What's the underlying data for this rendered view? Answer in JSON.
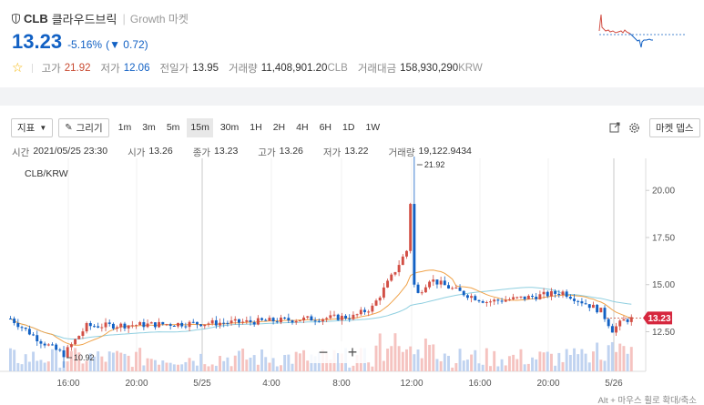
{
  "header": {
    "symbol": "CLB",
    "korean_name": "클라우드브릭",
    "separator": "|",
    "market": "Growth 마켓",
    "price": "13.23",
    "change_pct": "-5.16%",
    "change_abs": "▼ 0.72",
    "stats": [
      {
        "label": "고가",
        "value": "21.92",
        "tone": "red"
      },
      {
        "label": "저가",
        "value": "12.06",
        "tone": "blue"
      },
      {
        "label": "전일가",
        "value": "13.95",
        "tone": "plain"
      },
      {
        "label": "거래량",
        "value": "11,408,901.20",
        "unit": "CLB",
        "tone": "plain"
      },
      {
        "label": "거래대금",
        "value": "158,930,290",
        "unit": "KRW",
        "tone": "plain"
      }
    ]
  },
  "toolbar": {
    "indicator_label": "지표",
    "draw_label": "그리기",
    "timeframes": [
      "1m",
      "3m",
      "5m",
      "15m",
      "30m",
      "1H",
      "2H",
      "4H",
      "6H",
      "1D",
      "1W"
    ],
    "active_timeframe": "15m",
    "market_button": "마켓 뎁스"
  },
  "ohlc": {
    "time_label": "시간",
    "time_value": "2021/05/25 23:30",
    "open_label": "시가",
    "open_value": "13.26",
    "close_label": "종가",
    "close_value": "13.23",
    "high_label": "고가",
    "high_value": "13.26",
    "low_label": "저가",
    "low_value": "13.22",
    "vol_label": "거래량",
    "vol_value": "19,122.9434"
  },
  "chart_data": {
    "type": "candlestick",
    "pair_label": "CLB/KRW",
    "y_ticks": [
      "20.00",
      "17.50",
      "15.00",
      "12.50"
    ],
    "y_range": [
      10.4,
      21.7
    ],
    "x_ticks": [
      "16:00",
      "20:00",
      "5/25",
      "4:00",
      "8:00",
      "12:00",
      "16:00",
      "20:00",
      "5/26"
    ],
    "current_price_tag": "13.23",
    "high_marker": "21.92",
    "low_marker": "10.92",
    "colors": {
      "up": "#d24f45",
      "down": "#1261c4",
      "ma_short": "#f0a34a",
      "ma_long": "#8fcfe0",
      "vol_up": "#f5c3c0",
      "vol_down": "#c0d3f0"
    }
  },
  "zoom": {
    "minus": "−",
    "plus": "+"
  },
  "footer_hint": "Alt + 마우스 휠로 확대/축소"
}
